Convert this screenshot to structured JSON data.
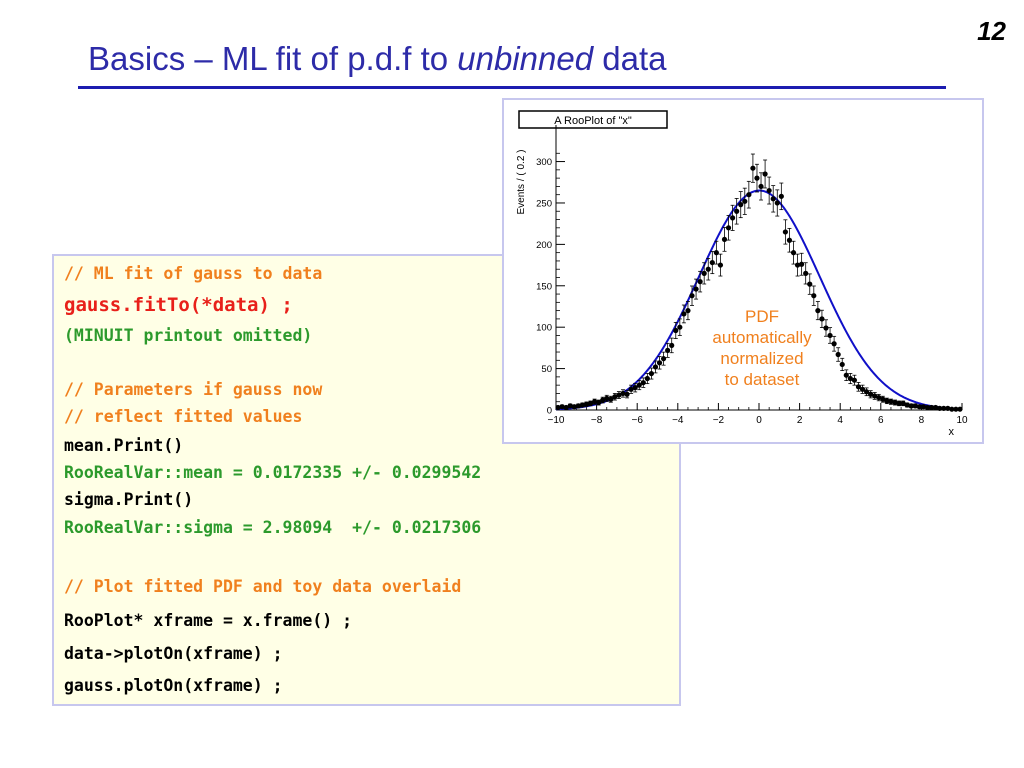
{
  "slide": {
    "number": "12",
    "title_main": "Basics – ML fit of p.d.f to ",
    "title_italic": "unbinned",
    "title_end": " data"
  },
  "code": {
    "lines": [
      {
        "text": "// ML fit of gauss to data",
        "color": "#f0801e"
      },
      {
        "text": "gauss.fitTo(*data) ;",
        "color": "#e8201a"
      },
      {
        "text": "(MINUIT printout omitted)",
        "color": "#2c9a2c"
      },
      {
        "text": "// Parameters if gauss now",
        "color": "#f0801e"
      },
      {
        "text": "// reflect fitted values",
        "color": "#f0801e"
      },
      {
        "text": "mean.Print()",
        "color": "#000000"
      },
      {
        "text": "RooRealVar::mean = 0.0172335 +/- 0.0299542",
        "color": "#2c9a2c"
      },
      {
        "text": "sigma.Print()",
        "color": "#000000"
      },
      {
        "text": "RooRealVar::sigma = 2.98094  +/- 0.0217306",
        "color": "#2c9a2c"
      },
      {
        "text": "// Plot fitted PDF and toy data overlaid",
        "color": "#f0801e"
      },
      {
        "text": "RooPlot* xframe = x.frame() ;",
        "color": "#000000"
      },
      {
        "text": "data->plotOn(xframe) ;",
        "color": "#000000"
      },
      {
        "text": "gauss.plotOn(xframe) ;",
        "color": "#000000"
      }
    ]
  },
  "plot": {
    "annotation": [
      "PDF",
      "automatically",
      "normalized",
      "to dataset"
    ]
  },
  "chart_data": {
    "type": "scatter",
    "title": "A RooPlot of \"x\"",
    "xlabel": "x",
    "ylabel": "Events / ( 0.2 )",
    "xlim": [
      -10,
      10
    ],
    "ylim": [
      0,
      320
    ],
    "x_ticks": [
      -10,
      -8,
      -6,
      -4,
      -2,
      0,
      2,
      4,
      6,
      8,
      10
    ],
    "y_ticks": [
      0,
      50,
      100,
      150,
      200,
      250,
      300
    ],
    "fit_curve": {
      "type": "gaussian",
      "mean": 0.0172335,
      "sigma": 2.98094,
      "peak": 265,
      "color": "#1010c8"
    },
    "series": [
      {
        "type": "points_with_errors",
        "color": "#000000",
        "x": [
          -9.9,
          -9.7,
          -9.5,
          -9.3,
          -9.1,
          -8.9,
          -8.7,
          -8.5,
          -8.3,
          -8.1,
          -7.9,
          -7.7,
          -7.5,
          -7.3,
          -7.1,
          -6.9,
          -6.7,
          -6.5,
          -6.3,
          -6.1,
          -5.9,
          -5.7,
          -5.5,
          -5.3,
          -5.1,
          -4.9,
          -4.7,
          -4.5,
          -4.3,
          -4.1,
          -3.9,
          -3.7,
          -3.5,
          -3.3,
          -3.1,
          -2.9,
          -2.7,
          -2.5,
          -2.3,
          -2.1,
          -1.9,
          -1.7,
          -1.5,
          -1.3,
          -1.1,
          -0.9,
          -0.7,
          -0.5,
          -0.3,
          -0.1,
          0.1,
          0.3,
          0.5,
          0.7,
          0.9,
          1.1,
          1.3,
          1.5,
          1.7,
          1.9,
          2.1,
          2.3,
          2.5,
          2.7,
          2.9,
          3.1,
          3.3,
          3.5,
          3.7,
          3.9,
          4.1,
          4.3,
          4.5,
          4.7,
          4.9,
          5.1,
          5.3,
          5.5,
          5.7,
          5.9,
          6.1,
          6.3,
          6.5,
          6.7,
          6.9,
          7.1,
          7.3,
          7.5,
          7.7,
          7.9,
          8.1,
          8.3,
          8.5,
          8.7,
          8.9,
          9.1,
          9.3,
          9.5,
          9.7,
          9.9
        ],
        "y": [
          3,
          4,
          3,
          5,
          4,
          5,
          6,
          7,
          8,
          10,
          9,
          12,
          14,
          13,
          16,
          18,
          20,
          19,
          25,
          27,
          30,
          33,
          38,
          44,
          52,
          57,
          62,
          72,
          78,
          96,
          100,
          116,
          120,
          138,
          146,
          155,
          165,
          170,
          178,
          190,
          175,
          206,
          220,
          232,
          240,
          248,
          252,
          260,
          292,
          280,
          270,
          285,
          265,
          255,
          250,
          258,
          215,
          205,
          190,
          175,
          176,
          165,
          152,
          138,
          120,
          110,
          99,
          90,
          80,
          67,
          55,
          42,
          38,
          36,
          28,
          25,
          22,
          19,
          17,
          15,
          13,
          11,
          10,
          9,
          8,
          8,
          6,
          5,
          5,
          4,
          4,
          3,
          3,
          3,
          2,
          2,
          2,
          1,
          1,
          1
        ]
      }
    ]
  }
}
